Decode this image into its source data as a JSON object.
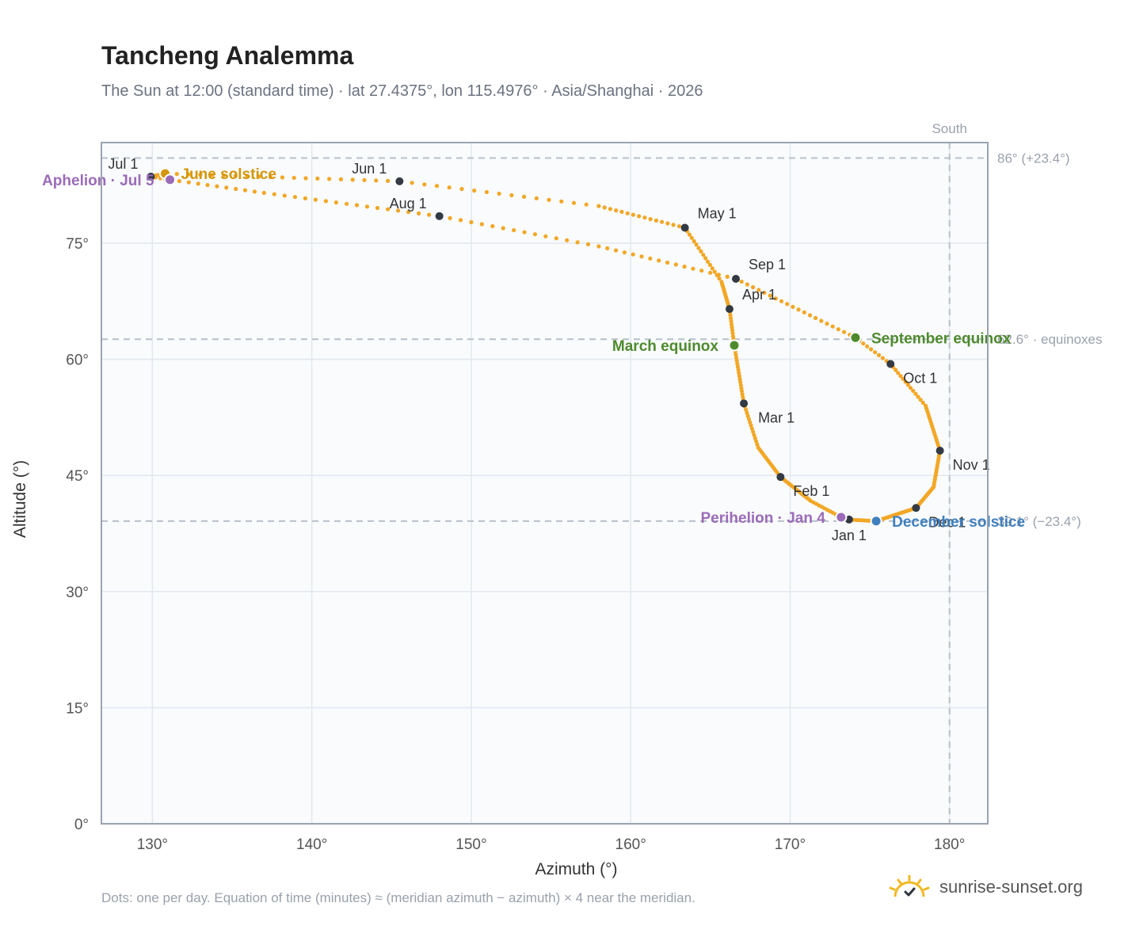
{
  "header": {
    "title": "Tancheng Analemma",
    "subtitle": "The Sun at 12:00 (standard time) · lat 27.4375°, lon 115.4976° · Asia/Shanghai · 2026"
  },
  "footer": {
    "note": "Dots: one per day. Equation of time (minutes) ≈ (meridian azimuth − azimuth) × 4 near the meridian.",
    "brand": "sunrise-sunset.org"
  },
  "colors": {
    "curve": "#f2a726",
    "month_dot": "#333a44",
    "equinox": "#4e8a2d",
    "june_solstice": "#d4960a",
    "december_solstice": "#3f7fc0",
    "apsis": "#9b6bb8",
    "grid": "#e2e8ee",
    "frame": "#9aa3b0",
    "plot_bg": "#f9fbfd",
    "ref_line": "#b8c0ca"
  },
  "chart_data": {
    "type": "scatter",
    "xlabel": "Azimuth (°)",
    "ylabel": "Altitude (°)",
    "xlim": [
      126.8,
      182.4
    ],
    "ylim": [
      0,
      88
    ],
    "x_ticks": [
      130,
      140,
      150,
      160,
      170,
      180
    ],
    "x_tick_labels": [
      "130°",
      "140°",
      "150°",
      "160°",
      "170°",
      "180°"
    ],
    "y_ticks": [
      0,
      15,
      30,
      45,
      60,
      75
    ],
    "y_tick_labels": [
      "0°",
      "15°",
      "30°",
      "45°",
      "60°",
      "75°"
    ],
    "grid": true,
    "reference_lines": {
      "south": {
        "azimuth": 180,
        "label": "South"
      },
      "horizontal": [
        {
          "altitude": 86.0,
          "label": "86° (+23.4°)"
        },
        {
          "altitude": 62.6,
          "label": "62.6° · equinoxes"
        },
        {
          "altitude": 39.1,
          "label": "39.1° (−23.4°)"
        }
      ]
    },
    "anchors": [
      {
        "day": 1,
        "az": 173.7,
        "alt": 39.3
      },
      {
        "day": 4,
        "az": 173.2,
        "alt": 39.6
      },
      {
        "day": 15,
        "az": 171.3,
        "alt": 41.7
      },
      {
        "day": 32,
        "az": 169.4,
        "alt": 44.8
      },
      {
        "day": 46,
        "az": 168.0,
        "alt": 48.6
      },
      {
        "day": 60,
        "az": 167.1,
        "alt": 54.3
      },
      {
        "day": 79,
        "az": 166.5,
        "alt": 61.8
      },
      {
        "day": 91,
        "az": 166.2,
        "alt": 66.5
      },
      {
        "day": 105,
        "az": 165.7,
        "alt": 70.0
      },
      {
        "day": 121,
        "az": 163.4,
        "alt": 77.0
      },
      {
        "day": 136,
        "az": 158.0,
        "alt": 79.8
      },
      {
        "day": 152,
        "az": 145.5,
        "alt": 83.0
      },
      {
        "day": 172,
        "az": 130.8,
        "alt": 84.0
      },
      {
        "day": 182,
        "az": 129.9,
        "alt": 83.6
      },
      {
        "day": 186,
        "az": 131.1,
        "alt": 83.2
      },
      {
        "day": 196,
        "az": 137.0,
        "alt": 81.5
      },
      {
        "day": 213,
        "az": 148.0,
        "alt": 78.5
      },
      {
        "day": 228,
        "az": 158.0,
        "alt": 74.6
      },
      {
        "day": 244,
        "az": 166.6,
        "alt": 70.4
      },
      {
        "day": 265,
        "az": 174.1,
        "alt": 62.8
      },
      {
        "day": 274,
        "az": 176.3,
        "alt": 59.4
      },
      {
        "day": 288,
        "az": 178.5,
        "alt": 54.0
      },
      {
        "day": 305,
        "az": 179.4,
        "alt": 48.2
      },
      {
        "day": 320,
        "az": 179.0,
        "alt": 43.5
      },
      {
        "day": 335,
        "az": 177.9,
        "alt": 40.8
      },
      {
        "day": 355,
        "az": 175.4,
        "alt": 39.1
      },
      {
        "day": 366,
        "az": 173.7,
        "alt": 39.3
      }
    ],
    "month_markers": [
      {
        "label": "Jan 1",
        "az": 173.7,
        "alt": 39.3,
        "pos": "below"
      },
      {
        "label": "Feb 1",
        "az": 169.4,
        "alt": 44.8,
        "pos": "below-right"
      },
      {
        "label": "Mar 1",
        "az": 167.1,
        "alt": 54.3,
        "pos": "right"
      },
      {
        "label": "Apr 1",
        "az": 166.2,
        "alt": 66.5,
        "pos": "above-right"
      },
      {
        "label": "May 1",
        "az": 163.4,
        "alt": 77.0,
        "pos": "above-right"
      },
      {
        "label": "Jun 1",
        "az": 145.5,
        "alt": 83.0,
        "pos": "above-left"
      },
      {
        "label": "Jul 1",
        "az": 129.9,
        "alt": 83.6,
        "pos": "above-left"
      },
      {
        "label": "Aug 1",
        "az": 148.0,
        "alt": 78.5,
        "pos": "above-left"
      },
      {
        "label": "Sep 1",
        "az": 166.6,
        "alt": 70.4,
        "pos": "above-right"
      },
      {
        "label": "Oct 1",
        "az": 176.3,
        "alt": 59.4,
        "pos": "below-right"
      },
      {
        "label": "Nov 1",
        "az": 179.4,
        "alt": 48.2,
        "pos": "below-right"
      },
      {
        "label": "Dec 1",
        "az": 177.9,
        "alt": 40.8,
        "pos": "below-right"
      }
    ],
    "events": [
      {
        "label": "March equinox",
        "az": 166.5,
        "alt": 61.8,
        "color": "equinox",
        "pos": "left"
      },
      {
        "label": "September equinox",
        "az": 174.1,
        "alt": 62.8,
        "color": "equinox",
        "pos": "right"
      },
      {
        "label": "June solstice",
        "az": 130.8,
        "alt": 84.0,
        "color": "june_solstice",
        "pos": "right"
      },
      {
        "label": "December solstice",
        "az": 175.4,
        "alt": 39.1,
        "color": "december_solstice",
        "pos": "right"
      },
      {
        "label": "Aphelion · Jul 5",
        "az": 131.1,
        "alt": 83.2,
        "color": "apsis",
        "pos": "left"
      },
      {
        "label": "Perihelion · Jan 4",
        "az": 173.2,
        "alt": 39.6,
        "color": "apsis",
        "pos": "left"
      }
    ]
  }
}
